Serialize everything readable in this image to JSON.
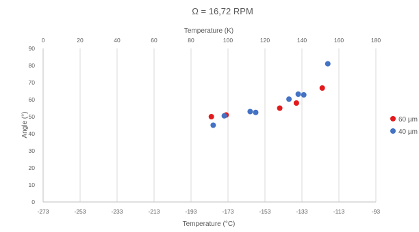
{
  "chart_data": {
    "type": "scatter",
    "title": "Ω = 16,72 RPM",
    "xlabel": "Temperature (°C)",
    "x2label": "Temperature (K)",
    "ylabel": "Angle (°)",
    "xlim": [
      -273,
      -93
    ],
    "x2lim": [
      0,
      180
    ],
    "ylim": [
      0,
      90
    ],
    "xticks": [
      -273,
      -253,
      -233,
      -213,
      -193,
      -173,
      -153,
      -133,
      -113,
      -93
    ],
    "x2ticks": [
      0,
      20,
      40,
      60,
      80,
      100,
      120,
      140,
      160,
      180
    ],
    "yticks": [
      0,
      10,
      20,
      30,
      40,
      50,
      60,
      70,
      80,
      90
    ],
    "grid": "vertical",
    "legend_position": "right",
    "series": [
      {
        "name": "60 µm",
        "color": "#e31a1c",
        "points": [
          {
            "x": -182,
            "y": 50.0
          },
          {
            "x": -174,
            "y": 51.0
          },
          {
            "x": -145,
            "y": 55.0
          },
          {
            "x": -136,
            "y": 58.0
          },
          {
            "x": -122,
            "y": 66.8
          }
        ]
      },
      {
        "name": "40 µm",
        "color": "#4472c4",
        "points": [
          {
            "x": -181,
            "y": 45.0
          },
          {
            "x": -175,
            "y": 50.5
          },
          {
            "x": -161,
            "y": 53.0
          },
          {
            "x": -158,
            "y": 52.5
          },
          {
            "x": -140,
            "y": 60.3
          },
          {
            "x": -135,
            "y": 63.2
          },
          {
            "x": -132,
            "y": 62.8
          },
          {
            "x": -119,
            "y": 81.0
          }
        ]
      }
    ]
  }
}
